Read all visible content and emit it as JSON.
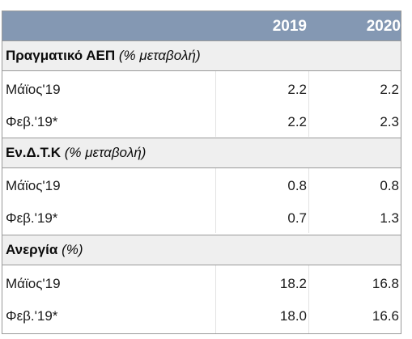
{
  "header": {
    "year1": "2019",
    "year2": "2020"
  },
  "sections": [
    {
      "title_bold": "Πραγματικό ΑΕΠ",
      "title_italic": "(% μεταβολή)",
      "rows": [
        {
          "label": "Μάϊος'19",
          "v2019": "2.2",
          "v2020": "2.2"
        },
        {
          "label": "Φεβ.'19*",
          "v2019": "2.2",
          "v2020": "2.3"
        }
      ]
    },
    {
      "title_bold": "Εν.Δ.Τ.Κ",
      "title_italic": "(% μεταβολή)",
      "rows": [
        {
          "label": "Μάϊος'19",
          "v2019": "0.8",
          "v2020": "0.8"
        },
        {
          "label": "Φεβ.'19*",
          "v2019": "0.7",
          "v2020": "1.3"
        }
      ]
    },
    {
      "title_bold": "Ανεργία",
      "title_italic": "(%)",
      "rows": [
        {
          "label": "Μάϊος'19",
          "v2019": "18.2",
          "v2020": "16.8"
        },
        {
          "label": "Φεβ.'19*",
          "v2019": "18.0",
          "v2020": "16.6"
        }
      ]
    }
  ]
}
